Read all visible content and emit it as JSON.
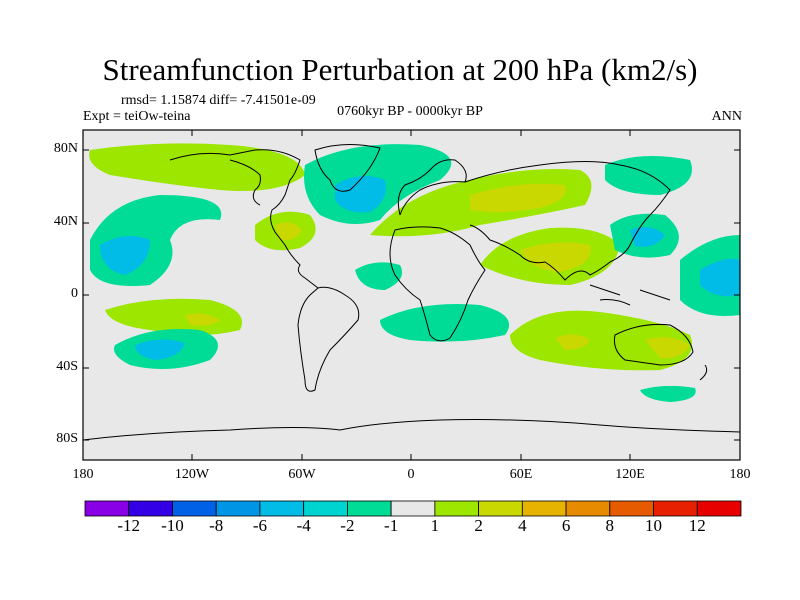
{
  "title": "Streamfunction Perturbation at 200 hPa (km2/s)",
  "stats": "rmsd= 1.15874 diff= -7.41501e-09",
  "experiment": "Expt = teiOw-teina",
  "period": "0760kyr BP - 0000kyr BP",
  "season": "ANN",
  "map": {
    "lat_labels": [
      "80N",
      "40N",
      "0",
      "40S",
      "80S"
    ],
    "lon_labels": [
      "180",
      "120W",
      "60W",
      "0",
      "60E",
      "120E",
      "180"
    ],
    "background_color": "#e8e8e8"
  },
  "colorbar": {
    "labels": [
      "-12",
      "-10",
      "-8",
      "-6",
      "-4",
      "-2",
      "-1",
      "1",
      "2",
      "4",
      "6",
      "8",
      "10",
      "12"
    ],
    "colors": [
      "#8a00e6",
      "#3300e6",
      "#0060e6",
      "#0096e6",
      "#00bce6",
      "#00d4d0",
      "#00dc96",
      "#e8e8e8",
      "#9ce600",
      "#c8d800",
      "#e6b400",
      "#e68a00",
      "#e65a00",
      "#e62000",
      "#e60000"
    ]
  }
}
